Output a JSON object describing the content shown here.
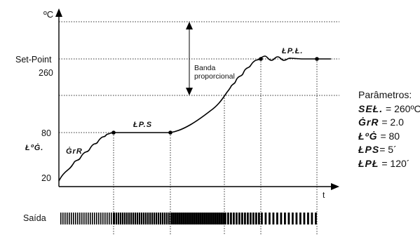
{
  "diagram": {
    "y_unit": "ºC",
    "x_unit": "t",
    "setpoint_label": "Set-Point",
    "setpoint_value": "260",
    "level_80": "80",
    "level_20": "20",
    "level_80_param": "ŁºĠ.",
    "ramp_label": "ĠrR",
    "hold_label": "ŁP.S",
    "final_label": "ŁP.Ł.",
    "band_label_line1": "Banda",
    "band_label_line2": "proporcional",
    "output_label": "Saída"
  },
  "parameters": {
    "title": "Parâmetros:",
    "items": [
      {
        "code": "SEŁ.",
        "value": " = 260ºC"
      },
      {
        "code": "ĠrR",
        "value": " = 2.0"
      },
      {
        "code": "ŁºĠ",
        "value": " = 80"
      },
      {
        "code": "ŁPS",
        "value": "= 5´"
      },
      {
        "code": "ŁPŁ",
        "value": " = 120´"
      }
    ]
  }
}
